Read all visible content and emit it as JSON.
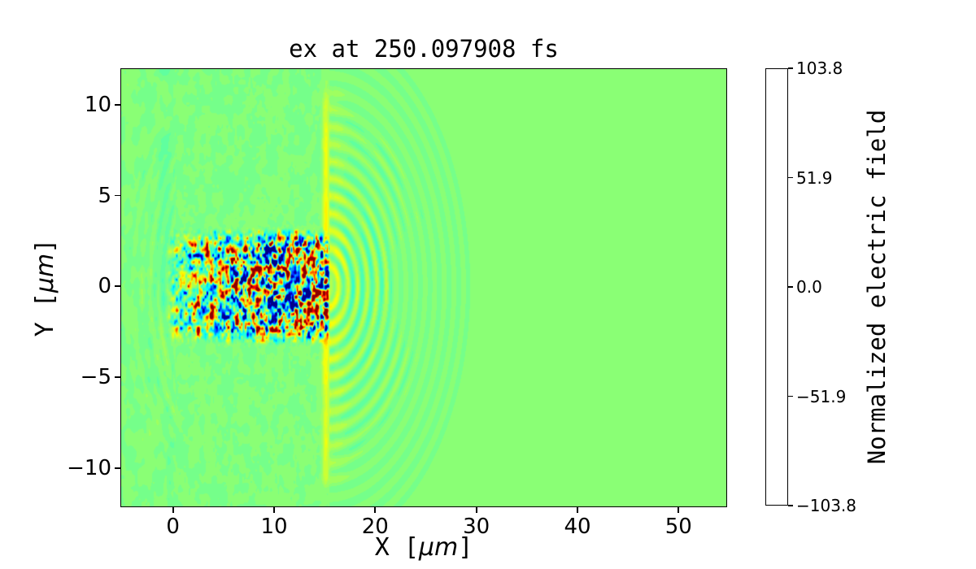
{
  "figure": {
    "background": "#ffffff"
  },
  "title": "ex at 250.097908 fs",
  "axes": {
    "xlabel": {
      "pre": "X [",
      "unit": "μm",
      "post": "]"
    },
    "ylabel": {
      "pre": "Y [",
      "unit": "μm",
      "post": "]"
    },
    "x_tick_labels": [
      "0",
      "10",
      "20",
      "30",
      "40",
      "50"
    ],
    "y_tick_labels": [
      "10",
      "5",
      "0",
      "−5",
      "−10"
    ]
  },
  "colorbar": {
    "label": "Normalized electric field",
    "tick_labels": [
      "103.8",
      "51.9",
      "0.0",
      "−51.9",
      "−103.8"
    ],
    "tick_values": [
      103.8,
      51.9,
      0.0,
      -51.9,
      -103.8
    ],
    "vmin": -103.8,
    "vmax": 103.8,
    "levels": 48,
    "colormap": "jet"
  },
  "chart_data": {
    "type": "heatmap",
    "title": "ex at 250.097908 fs",
    "xlabel": "X [μm]",
    "ylabel": "Y [μm]",
    "xlim": [
      -5.2,
      54.8
    ],
    "ylim": [
      -12.15,
      12.0
    ],
    "x_ticks": [
      0,
      10,
      20,
      30,
      40,
      50
    ],
    "y_ticks": [
      10,
      5,
      0,
      -5,
      -10
    ],
    "grid": false,
    "colormap": "jet",
    "vmin": -103.8,
    "vmax": 103.8,
    "background_value": 0.0,
    "description": "2D snapshot of transverse electric field ex from a laser-plasma simulation at t = 250.097908 fs: a speckled laser channel of |y|<~2.7 um spans x~0-15.5 um with saturated +/-100 hot spots, a bright positive (yellow/orange) vertical wavefront sits at x~15.1 um spanning |y|<~11.4 um, concentric circular ripples radiate to the right of the front out to radius ~14 um, and faint backscatter arcs plus a weak negative (teal) stripe appear near the left edge x<0; field is ~0 (green) elsewhere.",
    "features": [
      {
        "type": "noise_region",
        "x0": 0,
        "x1": 15.3,
        "y0": -12.2,
        "y1": 12.0,
        "amplitude": 2.4,
        "scale": 0.55,
        "seed": 1
      },
      {
        "type": "noise_region",
        "x0": -5.2,
        "x1": 0,
        "y0": -12.2,
        "y1": 12.0,
        "amplitude": 3.2,
        "scale": 0.75,
        "seed": 7
      },
      {
        "type": "radial_ripples",
        "cx": 9.0,
        "cy": 0.0,
        "wavelength": 0.85,
        "amplitude": 4.2,
        "r0": 8.8,
        "r1": 15.8,
        "xmax": 0.25,
        "axial_damp": false
      },
      {
        "type": "stripe",
        "x0": -1.9,
        "x1": 0.2,
        "amplitude": -5.5,
        "block_scale": 2.4
      },
      {
        "type": "speckle_band",
        "x0": -0.9,
        "x1": 15.55,
        "half_width": 2.75,
        "edge": 0.6,
        "amp_min": 16,
        "amp_max": 103,
        "ramp_end": 9.5,
        "scale": 0.42
      },
      {
        "type": "gaussian_band_x",
        "center": 15.12,
        "sigma": 0.33,
        "amplitude": 34,
        "y_extent": 11.35,
        "tail_center": 16.1,
        "tail_sigma": 1.0,
        "tail_amplitude": 9
      },
      {
        "type": "radial_ripples",
        "cx": 15.2,
        "cy": 0.0,
        "wavelength": 0.95,
        "amplitude": 16,
        "r0": 0.4,
        "r1": 14.2,
        "xmin": 15.5,
        "axial_damp": true
      }
    ]
  }
}
